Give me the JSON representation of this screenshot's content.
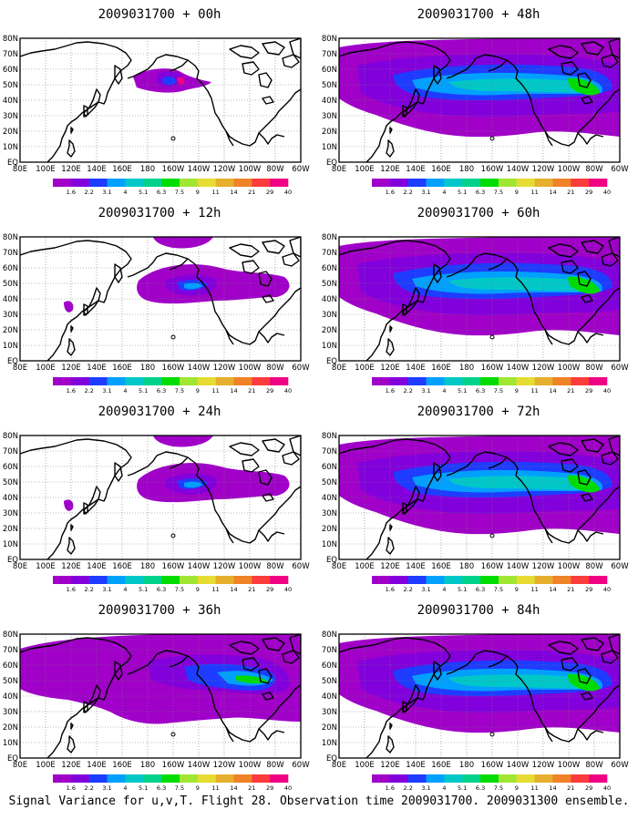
{
  "footer": "Signal Variance for u,v,T. Flight 28. Observation time 2009031700. 2009031300 ensemble.",
  "panels": [
    {
      "title": "2009031700 + 00h",
      "column": 0,
      "row": 0,
      "coverage": "small"
    },
    {
      "title": "2009031700 + 48h",
      "column": 1,
      "row": 0,
      "coverage": "large"
    },
    {
      "title": "2009031700 + 12h",
      "column": 0,
      "row": 1,
      "coverage": "medium"
    },
    {
      "title": "2009031700 + 60h",
      "column": 1,
      "row": 1,
      "coverage": "large"
    },
    {
      "title": "2009031700 + 24h",
      "column": 0,
      "row": 2,
      "coverage": "medium"
    },
    {
      "title": "2009031700 + 72h",
      "column": 1,
      "row": 2,
      "coverage": "large"
    },
    {
      "title": "2009031700 + 36h",
      "column": 0,
      "row": 3,
      "coverage": "medium-large"
    },
    {
      "title": "2009031700 + 84h",
      "column": 1,
      "row": 3,
      "coverage": "large"
    }
  ],
  "axes": {
    "x_labels": [
      "80E",
      "100E",
      "120E",
      "140E",
      "160E",
      "180",
      "160W",
      "140W",
      "120W",
      "100W",
      "80W",
      "60W"
    ],
    "y_labels": [
      "EQ",
      "10N",
      "20N",
      "30N",
      "40N",
      "50N",
      "60N",
      "70N",
      "80N"
    ]
  },
  "colorbar": {
    "labels": [
      "1.6",
      "2.2",
      "3.1",
      "4",
      "5.1",
      "6.3",
      "7.5",
      "9",
      "11",
      "14",
      "21",
      "29",
      "40"
    ],
    "colors": [
      "#a000c8",
      "#8200dc",
      "#1e3cff",
      "#00a0ff",
      "#00c8c8",
      "#00d28c",
      "#00dc00",
      "#a0e632",
      "#e6dc32",
      "#e6af2d",
      "#f08228",
      "#fa3c3c",
      "#f00082"
    ]
  }
}
